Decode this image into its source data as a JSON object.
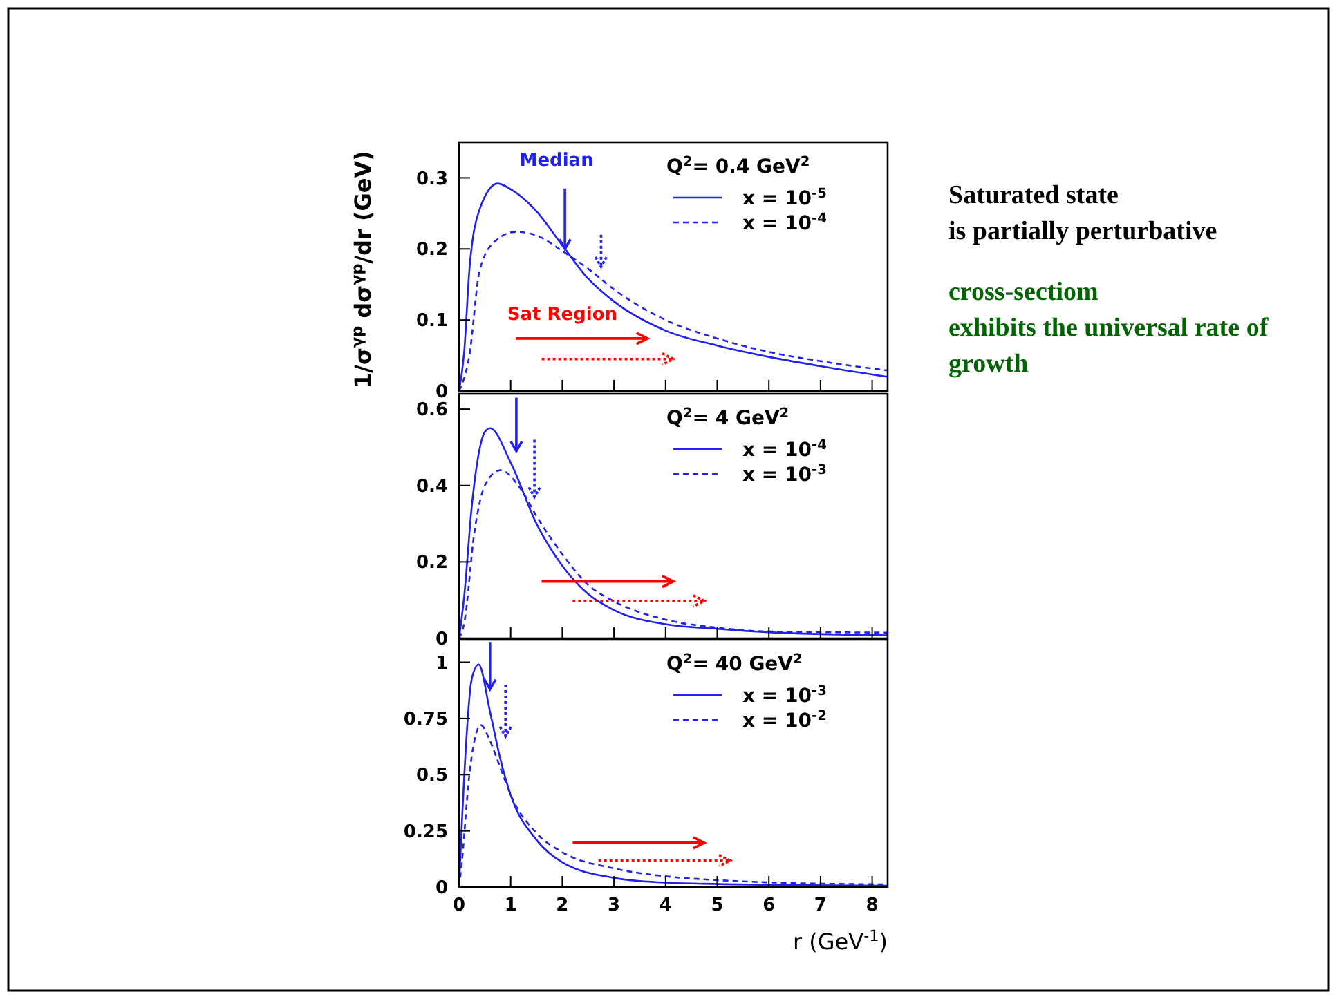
{
  "chart_data": [
    {
      "type": "line",
      "ylabel": "1/σ$^{γp}$ dσ$^{γp}$/dr (GeV)",
      "legend_title": "Q$^{2}$= 0.4 GeV$^{2}$",
      "legend": "top right",
      "tick_labels": "y",
      "xlim": [
        0,
        8.3
      ],
      "xticks": [
        0,
        1,
        2,
        3,
        4,
        5,
        6,
        7,
        8
      ],
      "ylim": [
        0,
        0.35
      ],
      "yticks": [
        0,
        0.1,
        0.2,
        0.3
      ],
      "annotations": [
        {
          "text": "Median",
          "x": 2.05,
          "y": 0.2
        },
        "Sat Region"
      ],
      "series": [
        {
          "name": "x = 10$^{-5}$",
          "color": "#2020f0",
          "line_style": "solid",
          "x": [
            0,
            0.1,
            0.2,
            0.4,
            0.75,
            1,
            1.5,
            2,
            2.5,
            3,
            4,
            5,
            6,
            7,
            8.3
          ],
          "values": [
            0,
            0.055,
            0.17,
            0.256,
            0.292,
            0.284,
            0.253,
            0.205,
            0.158,
            0.126,
            0.085,
            0.064,
            0.048,
            0.035,
            0.02
          ]
        },
        {
          "name": "x = 10$^{-4}$",
          "color": "#2020f0",
          "line_style": "dashed",
          "x": [
            0,
            0.2,
            0.4,
            0.7,
            1.1,
            1.5,
            2,
            2.5,
            3,
            4,
            5,
            6,
            7,
            8.3
          ],
          "values": [
            0,
            0.05,
            0.17,
            0.211,
            0.224,
            0.219,
            0.197,
            0.172,
            0.143,
            0.1,
            0.074,
            0.055,
            0.042,
            0.029
          ]
        }
      ]
    },
    {
      "type": "line",
      "legend_title": "Q$^{2}$= 4 GeV$^{2}$",
      "legend": "top right",
      "tick_labels": "y",
      "xlim": [
        0,
        8.3
      ],
      "xticks": [
        0,
        1,
        2,
        3,
        4,
        5,
        6,
        7,
        8
      ],
      "ylim": [
        0,
        0.64
      ],
      "yticks": [
        0,
        0.2,
        0.4,
        0.6
      ],
      "series": [
        {
          "name": "x = 10$^{-4}$",
          "color": "#2020f0",
          "line_style": "solid",
          "x": [
            0,
            0.1,
            0.25,
            0.5,
            0.6,
            1,
            1.5,
            2,
            2.5,
            3,
            4,
            5,
            6,
            8.3
          ],
          "values": [
            0,
            0.11,
            0.35,
            0.54,
            0.55,
            0.46,
            0.3,
            0.19,
            0.116,
            0.074,
            0.037,
            0.025,
            0.016,
            0.008
          ]
        },
        {
          "name": "x = 10$^{-3}$",
          "color": "#2020f0",
          "line_style": "dashed",
          "x": [
            0,
            0.1,
            0.3,
            0.5,
            0.8,
            1.2,
            1.5,
            2,
            2.5,
            3,
            4,
            5,
            6,
            8.3
          ],
          "values": [
            0,
            0.04,
            0.28,
            0.4,
            0.44,
            0.39,
            0.32,
            0.22,
            0.14,
            0.097,
            0.049,
            0.028,
            0.018,
            0.015
          ]
        }
      ]
    },
    {
      "type": "line",
      "xlabel": "r (GeV$^{-1}$)",
      "legend_title": "Q$^{2}$= 40 GeV$^{2}$",
      "legend": "top right",
      "xlim": [
        0,
        8.3
      ],
      "xticks": [
        0,
        1,
        2,
        3,
        4,
        5,
        6,
        7,
        8
      ],
      "ylim": [
        0,
        1.1
      ],
      "yticks": [
        0,
        0.25,
        0.5,
        0.75,
        1
      ],
      "series": [
        {
          "name": "x = 10$^{-3}$",
          "color": "#2020f0",
          "line_style": "solid",
          "x": [
            0,
            0.05,
            0.25,
            0.38,
            0.6,
            0.8,
            1,
            1.5,
            2,
            3,
            4,
            6,
            8.3
          ],
          "values": [
            0,
            0.26,
            0.93,
            0.99,
            0.78,
            0.57,
            0.41,
            0.21,
            0.11,
            0.041,
            0.02,
            0.01,
            0.006
          ]
        },
        {
          "name": "x = 10$^{-2}$",
          "color": "#2020f0",
          "line_style": "dashed",
          "x": [
            0,
            0.05,
            0.2,
            0.42,
            0.6,
            0.8,
            1,
            1.5,
            2,
            3,
            4,
            5,
            6,
            8.3
          ],
          "values": [
            0,
            0.1,
            0.5,
            0.72,
            0.65,
            0.53,
            0.41,
            0.24,
            0.155,
            0.083,
            0.048,
            0.031,
            0.021,
            0.012
          ]
        }
      ]
    },
    {
      "type": "other",
      "annotations": [
        "Saturated state\nis partially perturbative",
        "cross-sectiom\nexhibits the universal rate of\ngrowth"
      ],
      "colors": [
        "#000000",
        "#006400"
      ]
    }
  ]
}
